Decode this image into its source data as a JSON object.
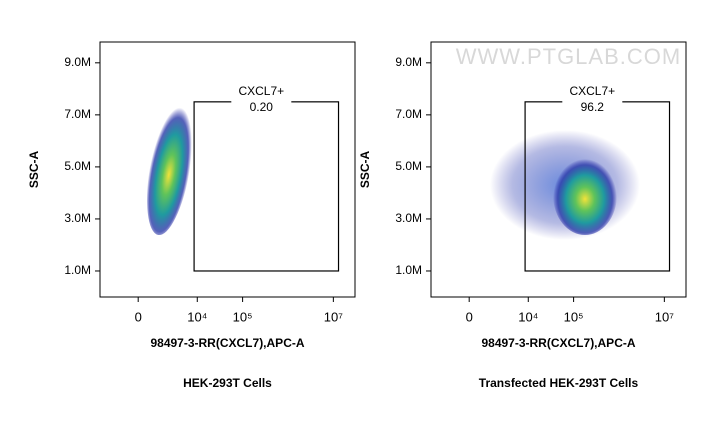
{
  "chart_data": [
    {
      "type": "scatter",
      "scale": "biexponential",
      "ylabel": "SSC-A",
      "xlabel": "98497-3-RR(CXCL7),APC-A",
      "caption": "HEK-293T Cells",
      "xlim": [
        -3400,
        30000000
      ],
      "xticks": [
        0,
        {
          "value": 10000,
          "label": "10⁴"
        },
        {
          "value": 100000,
          "label": "10⁵"
        },
        {
          "value": 10000000,
          "label": "10⁷"
        }
      ],
      "ylim": [
        0,
        9800000
      ],
      "yticks": [
        {
          "value": 1000000,
          "label": "1.0M"
        },
        {
          "value": 3000000,
          "label": "3.0M"
        },
        {
          "value": 5000000,
          "label": "5.0M"
        },
        {
          "value": 7000000,
          "label": "7.0M"
        },
        {
          "value": 9000000,
          "label": "9.0M"
        }
      ],
      "gate": {
        "name": "CXCL7+",
        "values": [
          0.2
        ],
        "value_labels": [
          "0.20"
        ],
        "x": [
          8500,
          13000000
        ],
        "y": [
          1000000,
          7500000
        ]
      }
    },
    {
      "type": "scatter",
      "scale": "biexponential",
      "ylabel": "SSC-A",
      "xlabel": "98497-3-RR(CXCL7),APC-A",
      "caption": "Transfected HEK-293T Cells",
      "watermark": "WWW.PTGLAB.COM",
      "xlim": [
        -3400,
        30000000
      ],
      "xticks": [
        0,
        {
          "value": 10000,
          "label": "10⁴"
        },
        {
          "value": 100000,
          "label": "10⁵"
        },
        {
          "value": 10000000,
          "label": "10⁷"
        }
      ],
      "ylim": [
        0,
        9800000
      ],
      "yticks": [
        {
          "value": 1000000,
          "label": "1.0M"
        },
        {
          "value": 3000000,
          "label": "3.0M"
        },
        {
          "value": 5000000,
          "label": "5.0M"
        },
        {
          "value": 7000000,
          "label": "7.0M"
        },
        {
          "value": 9000000,
          "label": "9.0M"
        }
      ],
      "gate": {
        "name": "CXCL7+",
        "values": [
          96.2
        ],
        "x": [
          8500,
          13000000
        ],
        "y": [
          1000000,
          7500000
        ]
      }
    }
  ]
}
